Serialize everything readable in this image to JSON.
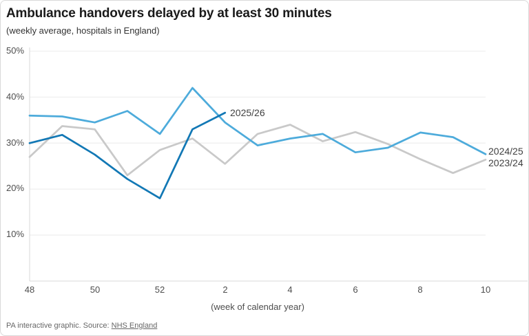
{
  "header": {
    "title": "Ambulance handovers delayed by at least 30 minutes",
    "subtitle": "(weekly average, hospitals in England)"
  },
  "footer": {
    "credit": "PA interactive graphic. Source: ",
    "source_link": "NHS England"
  },
  "colors": {
    "series_2025_26": "#1278b5",
    "series_2024_25": "#4dabdb",
    "series_2023_24": "#c9c9c9",
    "grid": "#f1f1f1",
    "axis": "#d8d8d8",
    "title_text": "#1a1a1a",
    "tick_text": "#4d4d4d"
  },
  "chart_data": {
    "type": "line",
    "title": "Ambulance handovers delayed by at least 30 minutes",
    "subtitle": "(weekly average, hospitals in England)",
    "xlabel": "(week of calendar year)",
    "ylabel": "",
    "ylim": [
      0,
      50
    ],
    "grid": "horizontal",
    "legend_position": "inline-end-of-line",
    "categories": [
      48,
      49,
      50,
      51,
      52,
      1,
      2,
      3,
      4,
      5,
      6,
      7,
      8,
      9,
      10
    ],
    "x_ticks": [
      "48",
      "50",
      "52",
      "2",
      "4",
      "6",
      "8",
      "10"
    ],
    "x_tick_indices": [
      0,
      2,
      4,
      6,
      8,
      10,
      12,
      14
    ],
    "y_ticks": [
      "50%",
      "40%",
      "30%",
      "20%",
      "10%"
    ],
    "y_tick_values": [
      50,
      40,
      30,
      20,
      10
    ],
    "series": [
      {
        "name": "2023/24",
        "color": "#c9c9c9",
        "values": [
          27,
          33.7,
          33,
          23,
          28.5,
          31,
          25.5,
          32,
          34,
          30.4,
          32.4,
          29.8,
          26.5,
          23.5,
          26.4
        ]
      },
      {
        "name": "2024/25",
        "color": "#4dabdb",
        "values": [
          36,
          35.8,
          34.5,
          37,
          32,
          42,
          34.5,
          29.5,
          31,
          32,
          28,
          29,
          32.3,
          31.3,
          27.6
        ]
      },
      {
        "name": "2025/26",
        "color": "#1278b5",
        "values": [
          30,
          31.8,
          27.5,
          22.2,
          18,
          33,
          36.6,
          null,
          null,
          null,
          null,
          null,
          null,
          null,
          null
        ]
      }
    ]
  }
}
